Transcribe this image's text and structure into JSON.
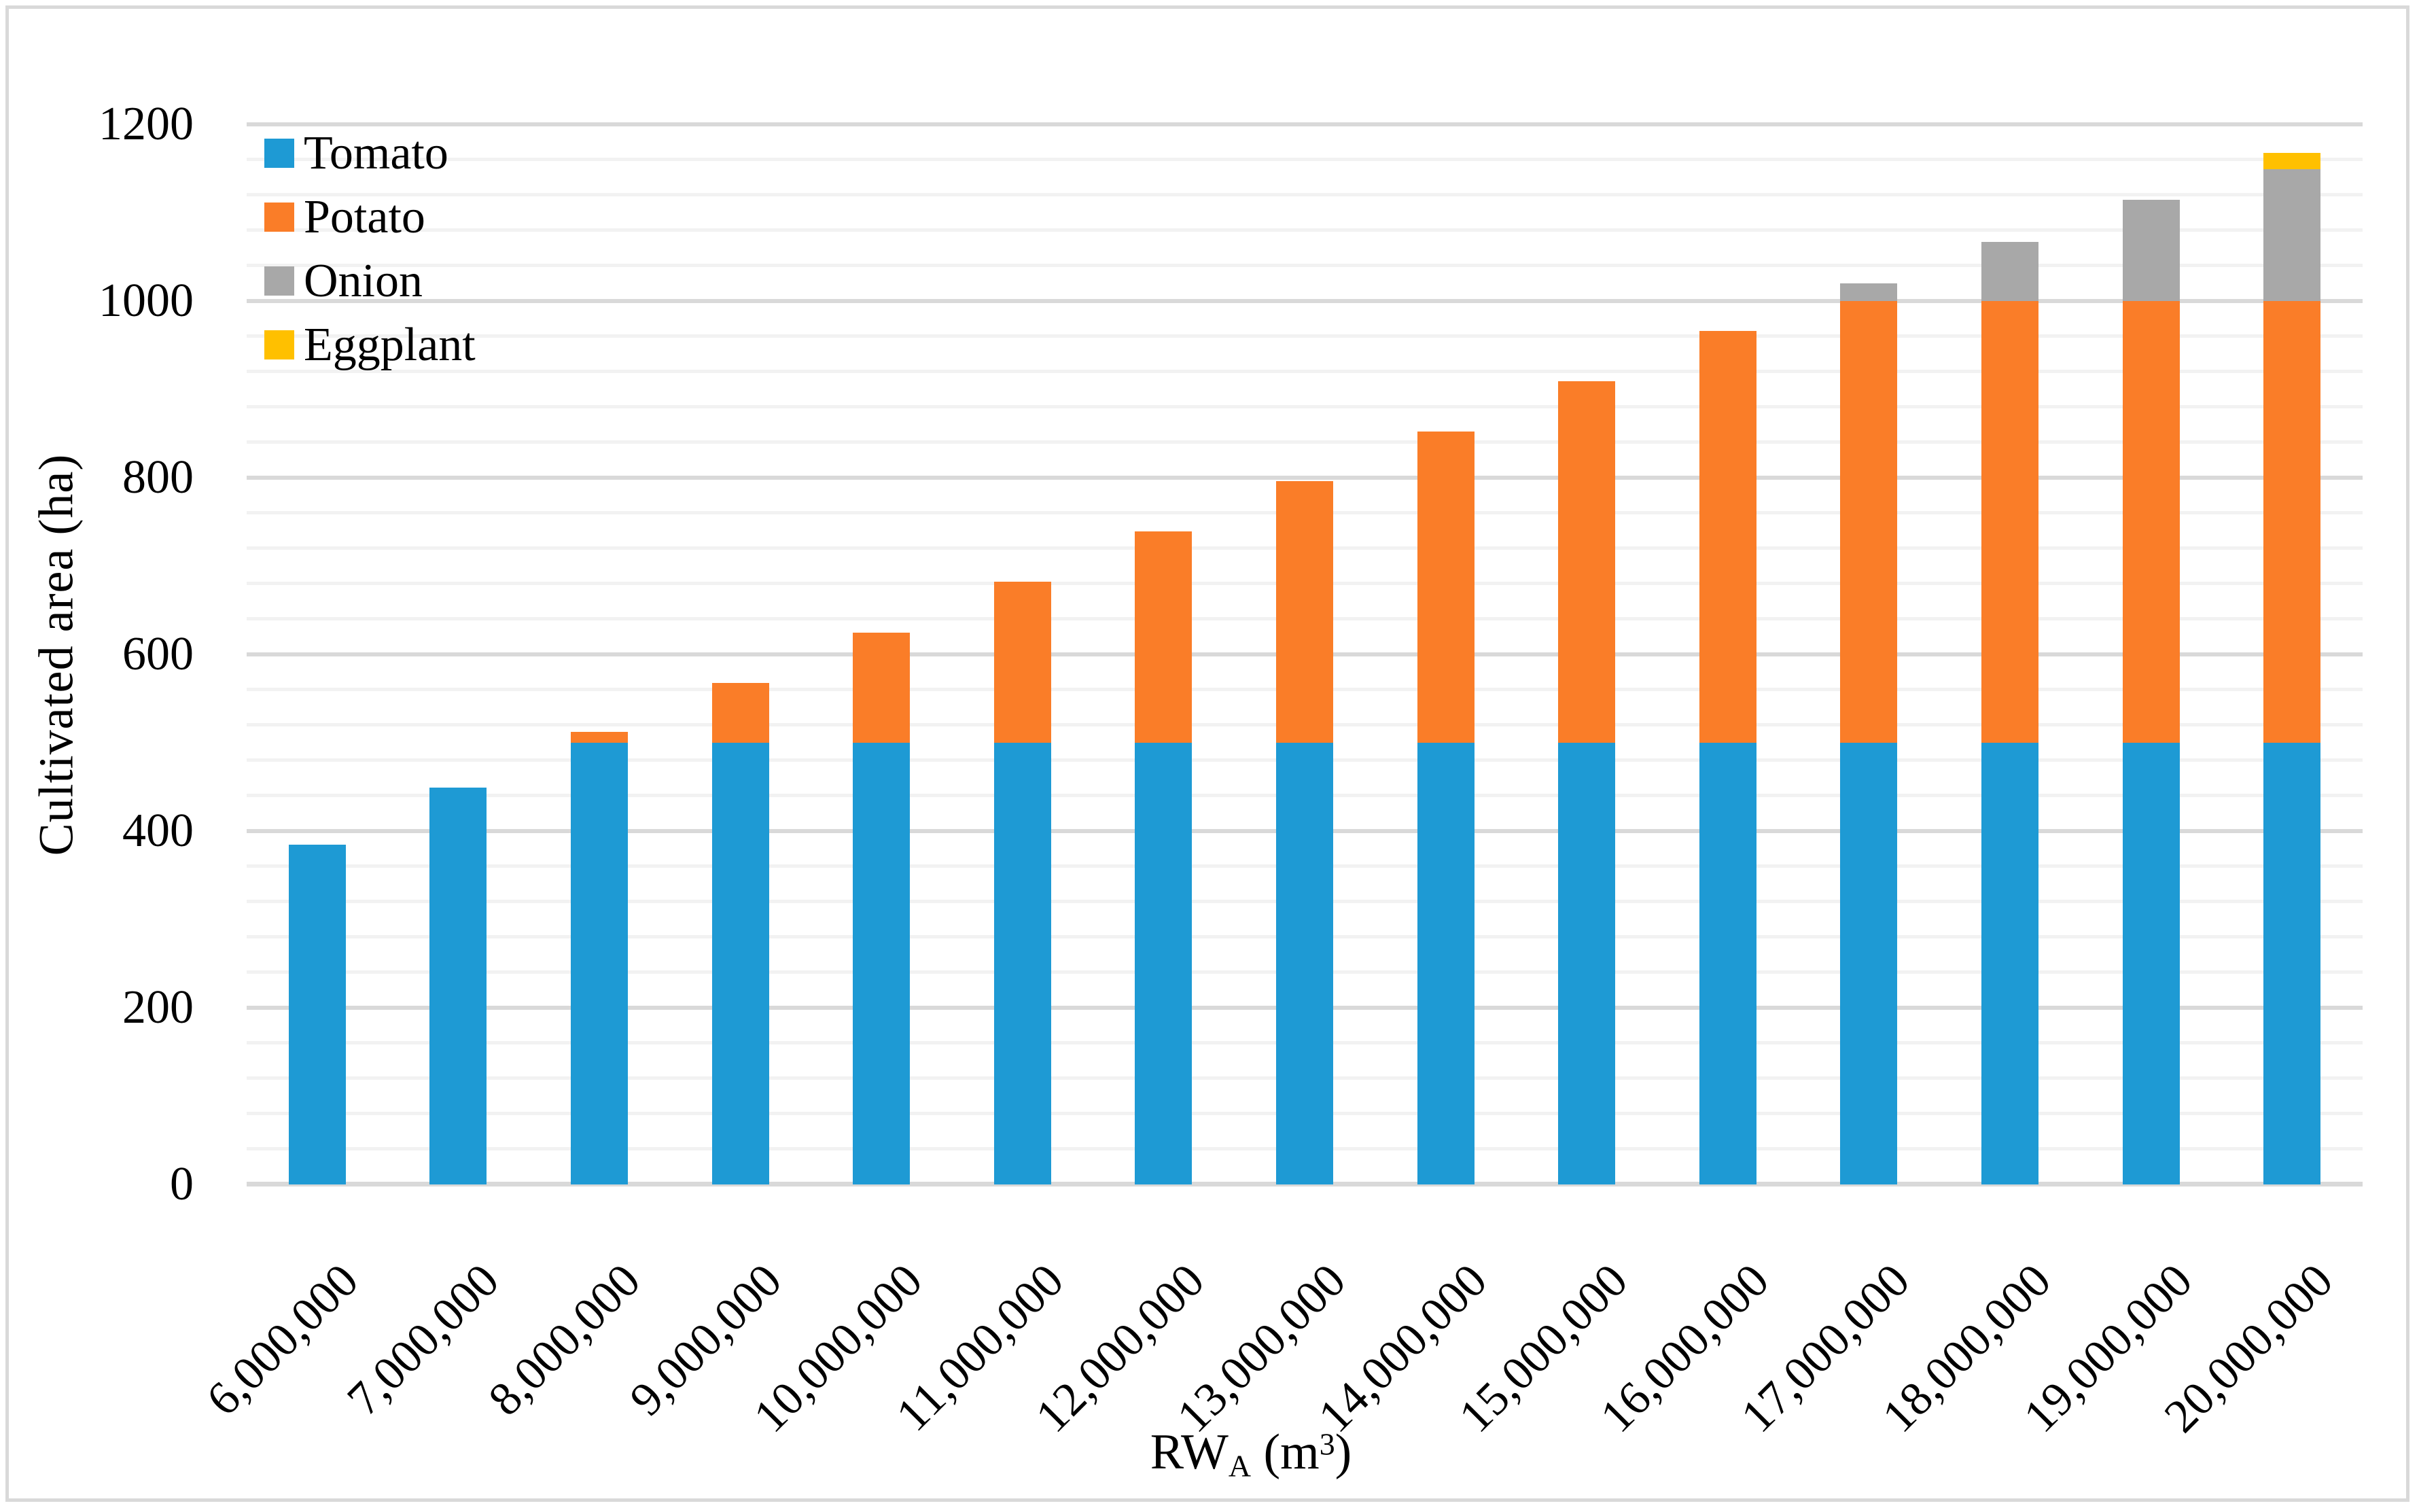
{
  "figure": {
    "background": "#FFFFFF",
    "border_color": "#D9D9D9",
    "text_color": "#000000"
  },
  "axes": {
    "y_title": "Cultivated area (ha)",
    "x_title": {
      "base": "RW",
      "sub": "A",
      "unit_open": " (m",
      "sup": "3",
      "unit_close": ")"
    }
  },
  "chart_data": {
    "type": "bar",
    "stacked": true,
    "title": "",
    "xlabel": "RW_A (m3)",
    "ylabel": "Cultivated area (ha)",
    "ylim": [
      0,
      1200
    ],
    "y_major": 200,
    "y_minor": 40,
    "grid": "horizontal major+minor",
    "legend_position": "inside top-left",
    "y_ticks": [
      "0",
      "200",
      "400",
      "600",
      "800",
      "1000",
      "1200"
    ],
    "categories": [
      "6,000,000",
      "7,000,000",
      "8,000,000",
      "9,000,000",
      "10,000,000",
      "11,000,000",
      "12,000,000",
      "13,000,000",
      "14,000,000",
      "15,000,000",
      "16,000,000",
      "17,000,000",
      "18,000,000",
      "19,000,000",
      "20,000,000"
    ],
    "series": [
      {
        "name": "Tomato",
        "color": "#1E9AD4",
        "values": [
          385,
          449,
          500,
          500,
          500,
          500,
          500,
          500,
          500,
          500,
          500,
          500,
          500,
          500,
          500
        ]
      },
      {
        "name": "Potato",
        "color": "#FA7D28",
        "values": [
          0,
          0,
          12,
          68,
          125,
          182,
          239,
          296,
          352,
          409,
          466,
          500,
          500,
          500,
          500
        ]
      },
      {
        "name": "Onion",
        "color": "#A8A8A8",
        "values": [
          0,
          0,
          0,
          0,
          0,
          0,
          0,
          0,
          0,
          0,
          0,
          20,
          67,
          115,
          149
        ]
      },
      {
        "name": "Eggplant",
        "color": "#FFC000",
        "values": [
          0,
          0,
          0,
          0,
          0,
          0,
          0,
          0,
          0,
          0,
          0,
          0,
          0,
          0,
          19
        ]
      }
    ],
    "gridline_colors": {
      "minor": "#F2F2F2",
      "major": "#D9D9D9",
      "axis": "#D9D9D9"
    }
  }
}
